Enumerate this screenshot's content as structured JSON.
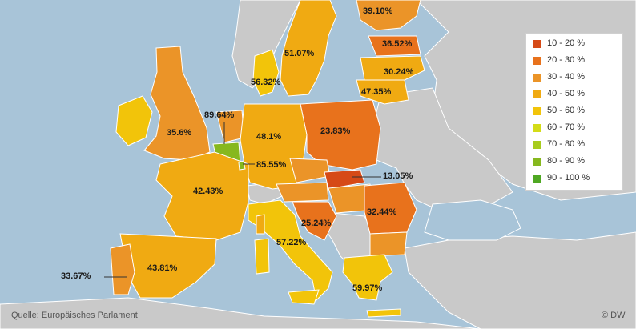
{
  "legend": {
    "items": [
      {
        "label": "10 - 20 %",
        "color": "#d64a17"
      },
      {
        "label": "20 - 30 %",
        "color": "#e8721c"
      },
      {
        "label": "30 - 40 %",
        "color": "#eb9428"
      },
      {
        "label": "40 - 50 %",
        "color": "#f0aa12"
      },
      {
        "label": "50 - 60 %",
        "color": "#f2c40a"
      },
      {
        "label": "60 - 70 %",
        "color": "#d4dc18"
      },
      {
        "label": "70 - 80 %",
        "color": "#a8cc1e"
      },
      {
        "label": "80 - 90 %",
        "color": "#86b81e"
      },
      {
        "label": "90 - 100 %",
        "color": "#4fa823"
      }
    ]
  },
  "values": {
    "finland": "39.10%",
    "sweden": "51.07%",
    "latvia": "36.52%",
    "lithuania": "30.24%",
    "poland_north": "47.35%",
    "denmark": "56.32%",
    "belgium": "89.64%",
    "uk": "35.6%",
    "germany": "48.1%",
    "poland": "23.83%",
    "luxembourg": "85.55%",
    "slovakia": "13.05%",
    "france": "42.43%",
    "romania": "32.44%",
    "croatia": "25.24%",
    "italy": "57.22%",
    "portugal": "33.67%",
    "spain": "43.81%",
    "greece": "59.97%"
  },
  "footer": {
    "source": "Quelle: Europäisches Parlament",
    "credit": "© DW"
  },
  "colors": {
    "sea": "#a8c4d8",
    "land_other": "#c9c9c9",
    "border": "#ffffff"
  }
}
